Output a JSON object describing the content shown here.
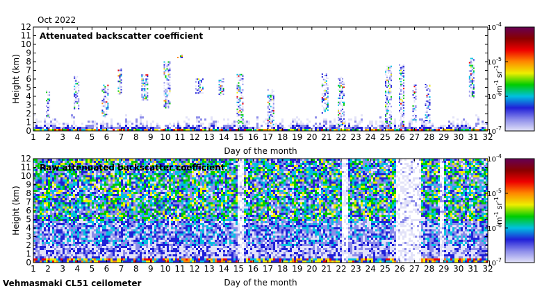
{
  "header": {
    "month_label": "Oct 2022"
  },
  "footer": {
    "instrument_label": "Vehmasmaki CL51 ceilometer"
  },
  "chart_data": [
    {
      "type": "heatmap",
      "title": "Attenuated backscatter coefficient",
      "xlabel": "Day of the month",
      "ylabel": "Height (km)",
      "x_ticks": [
        1,
        2,
        3,
        4,
        5,
        6,
        7,
        8,
        9,
        10,
        11,
        12,
        13,
        14,
        15,
        16,
        17,
        18,
        19,
        20,
        21,
        22,
        23,
        24,
        25,
        26,
        27,
        28,
        29,
        30,
        31,
        32
      ],
      "y_ticks": [
        0,
        1,
        2,
        3,
        4,
        5,
        6,
        7,
        8,
        9,
        10,
        11,
        12
      ],
      "xlim": [
        1,
        32
      ],
      "ylim": [
        0,
        12
      ],
      "colorbar": {
        "scale": "log",
        "range": [
          1e-07,
          0.0001
        ],
        "tick_labels": [
          "10^-7",
          "10^-6",
          "10^-5",
          "10^-4"
        ],
        "unit_label": "m^-1 sr^-1"
      },
      "colormap": [
        "#e2e2f8",
        "#8c8cea",
        "#2020d8",
        "#00c0e0",
        "#00cc00",
        "#eeee00",
        "#ff8800",
        "#ee0000",
        "#880000",
        "#660055"
      ],
      "features": {
        "surface_layer_top_km": 0.4,
        "cloud_columns": [
          {
            "day": 2.0,
            "base_km": 1.5,
            "top_km": 4.6
          },
          {
            "day": 3.95,
            "base_km": 2.5,
            "top_km": 6.3
          },
          {
            "day": 5.9,
            "base_km": 1.5,
            "top_km": 5.3
          },
          {
            "day": 6.9,
            "base_km": 4.2,
            "top_km": 7.2
          },
          {
            "day": 8.6,
            "base_km": 3.5,
            "top_km": 6.5
          },
          {
            "day": 10.1,
            "base_km": 2.6,
            "top_km": 7.9
          },
          {
            "day": 11.0,
            "base_km": 8.4,
            "top_km": 8.8
          },
          {
            "day": 12.3,
            "base_km": 4.3,
            "top_km": 6.0
          },
          {
            "day": 13.8,
            "base_km": 4.0,
            "top_km": 6.0
          },
          {
            "day": 15.1,
            "base_km": 0.5,
            "top_km": 6.5
          },
          {
            "day": 17.2,
            "base_km": 0.5,
            "top_km": 4.8
          },
          {
            "day": 20.9,
            "base_km": 2.0,
            "top_km": 6.7
          },
          {
            "day": 22.0,
            "base_km": 0.5,
            "top_km": 6.2
          },
          {
            "day": 25.2,
            "base_km": 0.5,
            "top_km": 7.4
          },
          {
            "day": 26.1,
            "base_km": 0.5,
            "top_km": 7.6
          },
          {
            "day": 27.0,
            "base_km": 1.2,
            "top_km": 5.3
          },
          {
            "day": 27.9,
            "base_km": 0.8,
            "top_km": 5.3
          },
          {
            "day": 30.9,
            "base_km": 3.8,
            "top_km": 8.3
          }
        ]
      }
    },
    {
      "type": "heatmap",
      "title": "Raw attenuated backscatter coefficient",
      "xlabel": "Day of the month",
      "ylabel": "Height (km)",
      "x_ticks": [
        1,
        2,
        3,
        4,
        5,
        6,
        7,
        8,
        9,
        10,
        11,
        12,
        13,
        14,
        15,
        16,
        17,
        18,
        19,
        20,
        21,
        22,
        23,
        24,
        25,
        26,
        27,
        28,
        29,
        30,
        31,
        32
      ],
      "y_ticks": [
        0,
        1,
        2,
        3,
        4,
        5,
        6,
        7,
        8,
        9,
        10,
        11,
        12
      ],
      "xlim": [
        1,
        32
      ],
      "ylim": [
        0,
        12
      ],
      "colorbar": {
        "scale": "log",
        "range": [
          1e-07,
          0.0001
        ],
        "tick_labels": [
          "10^-7",
          "10^-6",
          "10^-5",
          "10^-4"
        ],
        "unit_label": "m^-1 sr^-1"
      },
      "colormap": [
        "#e2e2f8",
        "#8c8cea",
        "#2020d8",
        "#00c0e0",
        "#00cc00",
        "#eeee00",
        "#ff8800",
        "#ee0000",
        "#880000",
        "#660055"
      ],
      "features": {
        "noise_dominated": true,
        "low_signal_days": [
          {
            "start": 14.9,
            "end": 15.3
          },
          {
            "start": 21.95,
            "end": 22.35
          },
          {
            "start": 25.7,
            "end": 26.6
          },
          {
            "start": 26.6,
            "end": 27.4
          },
          {
            "start": 28.6,
            "end": 29.0
          }
        ]
      }
    }
  ]
}
